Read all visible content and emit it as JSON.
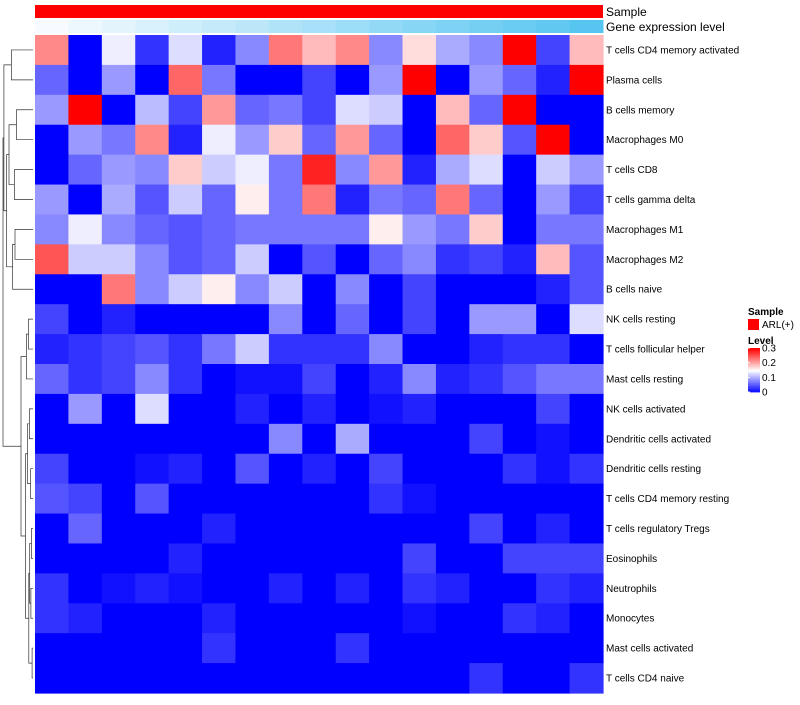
{
  "chart_data": {
    "type": "heatmap",
    "annotation_labels": {
      "sample": "Sample",
      "gene_expression": "Gene expression level"
    },
    "gene_expression_colors": {
      "low": "#f7fbff",
      "high": "#56c5f0"
    },
    "sample_color": "#ff0000",
    "legend": {
      "sample_title": "Sample",
      "sample_entry": "ARL(+)",
      "level_title": "Level",
      "level_ticks": [
        "0.3",
        "0.2",
        "0.1",
        "0"
      ],
      "level_range": [
        0,
        0.3
      ]
    },
    "color_scale": {
      "low": "#0000ff",
      "mid": "#ffffff",
      "high": "#ff0000"
    },
    "rows": [
      "T cells CD4 memory activated",
      "Plasma cells",
      "B cells memory",
      "Macrophages M0",
      "T cells CD8",
      "T cells gamma delta",
      "Macrophages M1",
      "Macrophages M2",
      "B cells naive",
      "NK cells resting",
      "T cells follicular helper",
      "Mast cells resting",
      "NK cells activated",
      "Dendritic cells activated",
      "Dendritic cells resting",
      "T cells CD4 memory resting",
      "T cells regulatory  Tregs",
      "Eosinophils",
      "Neutrophils",
      "Monocytes",
      "Mast cells activated",
      "T cells CD4 naive"
    ],
    "values": [
      [
        0.22,
        0.0,
        0.14,
        0.03,
        0.13,
        0.02,
        0.08,
        0.23,
        0.19,
        0.22,
        0.08,
        0.17,
        0.1,
        0.08,
        0.3,
        0.04,
        0.19
      ],
      [
        0.06,
        0.0,
        0.09,
        0.0,
        0.24,
        0.07,
        0.0,
        0.0,
        0.04,
        0.0,
        0.09,
        0.3,
        0.0,
        0.09,
        0.06,
        0.02,
        0.3
      ],
      [
        0.09,
        0.3,
        0.0,
        0.11,
        0.04,
        0.21,
        0.06,
        0.07,
        0.04,
        0.13,
        0.12,
        0.0,
        0.19,
        0.06,
        0.3,
        0.0,
        0.0
      ],
      [
        0.0,
        0.09,
        0.07,
        0.22,
        0.02,
        0.14,
        0.09,
        0.18,
        0.06,
        0.21,
        0.06,
        0.0,
        0.24,
        0.18,
        0.05,
        0.3,
        0.0
      ],
      [
        0.0,
        0.06,
        0.09,
        0.08,
        0.18,
        0.12,
        0.14,
        0.07,
        0.28,
        0.08,
        0.21,
        0.02,
        0.1,
        0.13,
        0.0,
        0.12,
        0.09
      ],
      [
        0.09,
        0.0,
        0.1,
        0.05,
        0.12,
        0.06,
        0.16,
        0.07,
        0.23,
        0.02,
        0.07,
        0.06,
        0.23,
        0.06,
        0.0,
        0.09,
        0.04
      ],
      [
        0.08,
        0.14,
        0.08,
        0.06,
        0.05,
        0.06,
        0.07,
        0.07,
        0.07,
        0.07,
        0.16,
        0.09,
        0.07,
        0.18,
        0.0,
        0.07,
        0.07
      ],
      [
        0.25,
        0.12,
        0.12,
        0.08,
        0.05,
        0.06,
        0.12,
        0.0,
        0.05,
        0.0,
        0.06,
        0.08,
        0.03,
        0.04,
        0.02,
        0.19,
        0.05
      ],
      [
        0.0,
        0.0,
        0.23,
        0.08,
        0.12,
        0.16,
        0.08,
        0.12,
        0.0,
        0.08,
        0.0,
        0.04,
        0.0,
        0.0,
        0.0,
        0.02,
        0.05
      ],
      [
        0.04,
        0.0,
        0.02,
        0.0,
        0.0,
        0.0,
        0.0,
        0.08,
        0.0,
        0.06,
        0.0,
        0.04,
        0.0,
        0.09,
        0.09,
        0.0,
        0.13
      ],
      [
        0.02,
        0.03,
        0.04,
        0.05,
        0.03,
        0.07,
        0.12,
        0.03,
        0.03,
        0.03,
        0.08,
        0.0,
        0.0,
        0.02,
        0.03,
        0.03,
        0.0
      ],
      [
        0.06,
        0.03,
        0.04,
        0.08,
        0.03,
        0.0,
        0.01,
        0.01,
        0.04,
        0.0,
        0.02,
        0.08,
        0.02,
        0.03,
        0.05,
        0.07,
        0.07
      ],
      [
        0.0,
        0.09,
        0.0,
        0.13,
        0.0,
        0.0,
        0.02,
        0.0,
        0.02,
        0.0,
        0.01,
        0.02,
        0.0,
        0.0,
        0.0,
        0.04,
        0.0
      ],
      [
        0.0,
        0.0,
        0.0,
        0.0,
        0.0,
        0.0,
        0.0,
        0.08,
        0.0,
        0.1,
        0.0,
        0.0,
        0.0,
        0.04,
        0.0,
        0.01,
        0.0
      ],
      [
        0.04,
        0.0,
        0.0,
        0.01,
        0.02,
        0.0,
        0.05,
        0.0,
        0.02,
        0.0,
        0.04,
        0.0,
        0.0,
        0.0,
        0.03,
        0.01,
        0.03
      ],
      [
        0.05,
        0.04,
        0.0,
        0.05,
        0.0,
        0.0,
        0.0,
        0.0,
        0.0,
        0.0,
        0.03,
        0.01,
        0.0,
        0.0,
        0.0,
        0.0,
        0.0
      ],
      [
        0.0,
        0.06,
        0.0,
        0.0,
        0.0,
        0.02,
        0.0,
        0.0,
        0.0,
        0.0,
        0.0,
        0.0,
        0.0,
        0.04,
        0.0,
        0.02,
        0.0
      ],
      [
        0.0,
        0.0,
        0.0,
        0.0,
        0.02,
        0.0,
        0.0,
        0.0,
        0.0,
        0.0,
        0.0,
        0.04,
        0.0,
        0.0,
        0.04,
        0.04,
        0.04
      ],
      [
        0.03,
        0.0,
        0.01,
        0.02,
        0.01,
        0.0,
        0.0,
        0.02,
        0.0,
        0.02,
        0.0,
        0.03,
        0.02,
        0.0,
        0.0,
        0.03,
        0.02
      ],
      [
        0.03,
        0.02,
        0.0,
        0.0,
        0.0,
        0.02,
        0.0,
        0.0,
        0.0,
        0.0,
        0.0,
        0.01,
        0.0,
        0.0,
        0.03,
        0.02,
        0.0
      ],
      [
        0.0,
        0.0,
        0.0,
        0.0,
        0.0,
        0.03,
        0.0,
        0.0,
        0.0,
        0.03,
        0.0,
        0.0,
        0.0,
        0.0,
        0.0,
        0.0,
        0.0
      ],
      [
        0.0,
        0.0,
        0.0,
        0.0,
        0.0,
        0.0,
        0.0,
        0.0,
        0.0,
        0.0,
        0.0,
        0.0,
        0.0,
        0.03,
        0.0,
        0.0,
        0.03
      ]
    ]
  }
}
